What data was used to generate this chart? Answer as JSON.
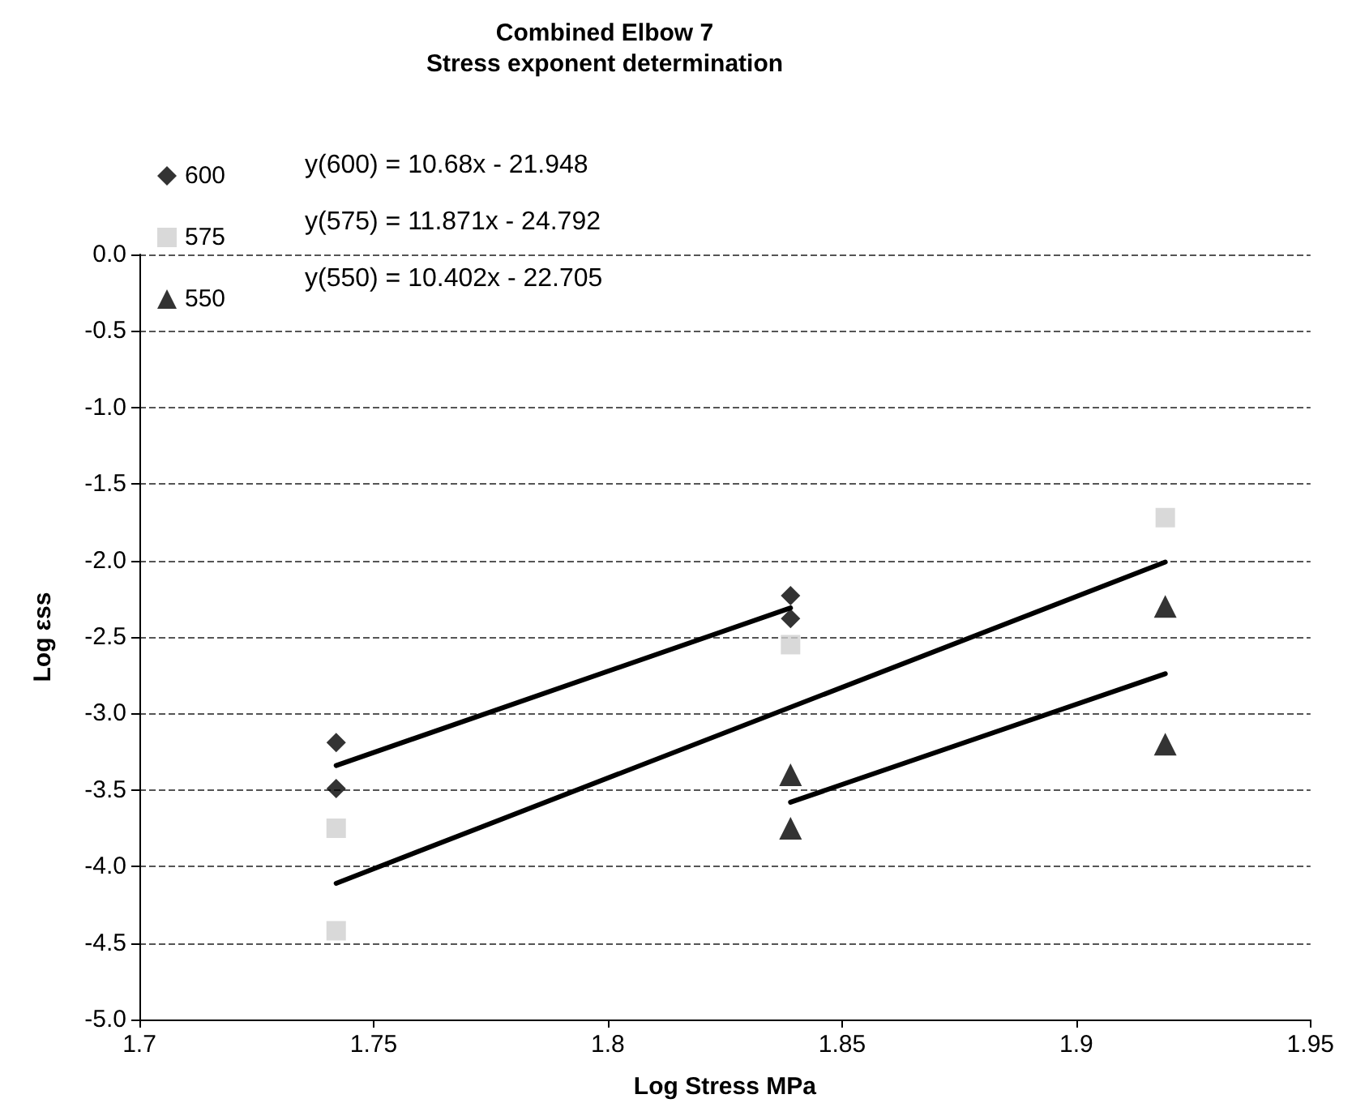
{
  "chart_data": {
    "type": "scatter",
    "title": "Combined Elbow 7",
    "subtitle": "Stress exponent determination",
    "xlabel": "Log Stress MPa",
    "ylabel": "Log εss",
    "xlim": [
      1.7,
      1.95
    ],
    "xticks": [
      1.7,
      1.75,
      1.8,
      1.85,
      1.9,
      1.95
    ],
    "ylim": [
      -5,
      0
    ],
    "yticks": [
      {
        "value": -5,
        "label": "-5.0"
      },
      {
        "value": -4.5,
        "label": "-4.5"
      },
      {
        "value": -4,
        "label": "-4.0"
      },
      {
        "value": -3.5,
        "label": "-3.5"
      },
      {
        "value": -3,
        "label": "-3.0"
      },
      {
        "value": -2.5,
        "label": "-2.5"
      },
      {
        "value": -2,
        "label": "-2.0"
      },
      {
        "value": -1.5,
        "label": "-1.5"
      },
      {
        "value": -1,
        "label": "-1.0"
      },
      {
        "value": -0.5,
        "label": "-0.5"
      },
      {
        "value": 0,
        "label": "0.0"
      }
    ],
    "grid": "y",
    "legend": "top left",
    "annotations": [
      "y(600) = 10.68x - 21.948",
      "y(575) = 11.871x - 24.792",
      "y(550) = 10.402x - 22.705"
    ],
    "series": [
      {
        "name": "600",
        "marker": "diamond",
        "color": "#000000",
        "x": [
          1.742,
          1.742,
          1.839,
          1.839
        ],
        "values": [
          -3.19,
          -3.49,
          -2.23,
          -2.38
        ]
      },
      {
        "name": "575",
        "marker": "square",
        "color": "#d0d0d0",
        "x": [
          1.742,
          1.742,
          1.839,
          1.919
        ],
        "values": [
          -3.75,
          -4.42,
          -2.55,
          -1.72
        ]
      },
      {
        "name": "550",
        "marker": "triangle",
        "color": "#000000",
        "x": [
          1.839,
          1.839,
          1.919,
          1.919
        ],
        "values": [
          -3.4,
          -3.75,
          -2.3,
          -3.2
        ]
      },
      {
        "type": "line",
        "color": "#000000",
        "x": [
          1.742,
          1.839
        ],
        "values": [
          -3.34,
          -2.31
        ]
      },
      {
        "type": "line",
        "color": "#000000",
        "x": [
          1.742,
          1.919
        ],
        "values": [
          -4.11,
          -2.01
        ]
      },
      {
        "type": "line",
        "color": "#000000",
        "x": [
          1.839,
          1.919
        ],
        "values": [
          -3.58,
          -2.74
        ]
      }
    ]
  }
}
